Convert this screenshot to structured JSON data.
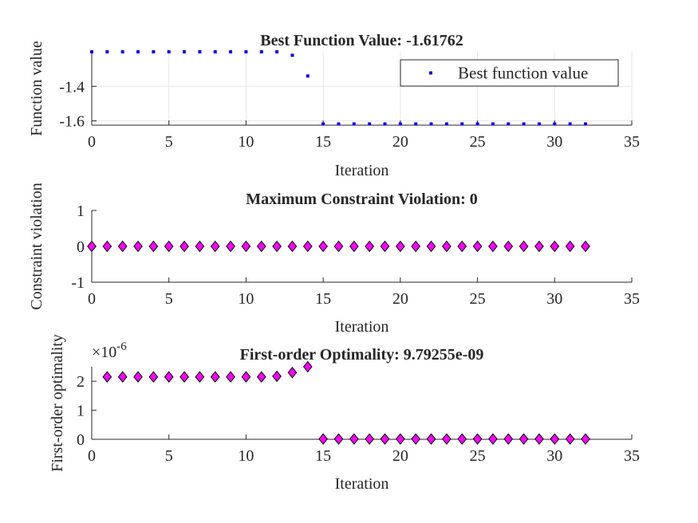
{
  "colors": {
    "axis": "#262626",
    "grid": "#e6e6e6",
    "blue_marker": "#0000ff",
    "magenta_marker": "#ff00ff",
    "marker_edge": "#000000"
  },
  "chart_data": [
    {
      "type": "scatter",
      "title": "Best Function Value: -1.61762",
      "xlabel": "Iteration",
      "ylabel": "Function value",
      "xlim": [
        0,
        35
      ],
      "ylim": [
        -1.625,
        -1.2
      ],
      "xticks": [
        0,
        5,
        10,
        15,
        20,
        25,
        30,
        35
      ],
      "yticks": [
        -1.6,
        -1.4
      ],
      "ytick_labels": [
        "-1.6",
        "-1.4"
      ],
      "grid": true,
      "legend": {
        "position": "top-right",
        "entries": [
          "Best function value"
        ]
      },
      "marker": "point",
      "color": "#0000ff",
      "x": [
        0,
        1,
        2,
        3,
        4,
        5,
        6,
        7,
        8,
        9,
        10,
        11,
        12,
        13,
        14,
        15,
        16,
        17,
        18,
        19,
        20,
        21,
        22,
        23,
        24,
        25,
        26,
        27,
        28,
        29,
        30,
        31,
        32
      ],
      "y": [
        -1.2,
        -1.2,
        -1.2,
        -1.2,
        -1.2,
        -1.2,
        -1.2,
        -1.2,
        -1.2,
        -1.2,
        -1.2,
        -1.2,
        -1.2,
        -1.22,
        -1.34,
        -1.618,
        -1.618,
        -1.618,
        -1.618,
        -1.618,
        -1.618,
        -1.618,
        -1.618,
        -1.618,
        -1.618,
        -1.618,
        -1.618,
        -1.618,
        -1.618,
        -1.618,
        -1.618,
        -1.618,
        -1.618
      ]
    },
    {
      "type": "scatter",
      "title": "Maximum Constraint Violation: 0",
      "xlabel": "Iteration",
      "ylabel": "Constraint violation",
      "xlim": [
        0,
        35
      ],
      "ylim": [
        -1,
        1
      ],
      "xticks": [
        0,
        5,
        10,
        15,
        20,
        25,
        30,
        35
      ],
      "yticks": [
        -1,
        0,
        1
      ],
      "ytick_labels": [
        "-1",
        "0",
        "1"
      ],
      "grid": false,
      "marker": "diamond",
      "color": "#ff00ff",
      "x": [
        0,
        1,
        2,
        3,
        4,
        5,
        6,
        7,
        8,
        9,
        10,
        11,
        12,
        13,
        14,
        15,
        16,
        17,
        18,
        19,
        20,
        21,
        22,
        23,
        24,
        25,
        26,
        27,
        28,
        29,
        30,
        31,
        32
      ],
      "y": [
        0,
        0,
        0,
        0,
        0,
        0,
        0,
        0,
        0,
        0,
        0,
        0,
        0,
        0,
        0,
        0,
        0,
        0,
        0,
        0,
        0,
        0,
        0,
        0,
        0,
        0,
        0,
        0,
        0,
        0,
        0,
        0,
        0
      ]
    },
    {
      "type": "scatter",
      "title": "First-order Optimality: 9.79255e-09",
      "xlabel": "Iteration",
      "ylabel": "First-order optimality",
      "y_exponent_base": "×10",
      "y_exponent_power": "-6",
      "xlim": [
        0,
        35
      ],
      "ylim": [
        0,
        2.5
      ],
      "xticks": [
        0,
        5,
        10,
        15,
        20,
        25,
        30,
        35
      ],
      "yticks": [
        0,
        1,
        2
      ],
      "ytick_labels": [
        "0",
        "1",
        "2"
      ],
      "grid": false,
      "marker": "diamond",
      "color": "#ff00ff",
      "x": [
        1,
        2,
        3,
        4,
        5,
        6,
        7,
        8,
        9,
        10,
        11,
        12,
        13,
        14,
        15,
        16,
        17,
        18,
        19,
        20,
        21,
        22,
        23,
        24,
        25,
        26,
        27,
        28,
        29,
        30,
        31,
        32
      ],
      "y": [
        2.15,
        2.15,
        2.15,
        2.15,
        2.15,
        2.15,
        2.15,
        2.15,
        2.15,
        2.15,
        2.15,
        2.17,
        2.3,
        2.5,
        0.01,
        0.01,
        0.01,
        0.01,
        0.01,
        0.01,
        0.01,
        0.01,
        0.01,
        0.01,
        0.01,
        0.01,
        0.01,
        0.01,
        0.01,
        0.01,
        0.01,
        0.01
      ]
    }
  ]
}
